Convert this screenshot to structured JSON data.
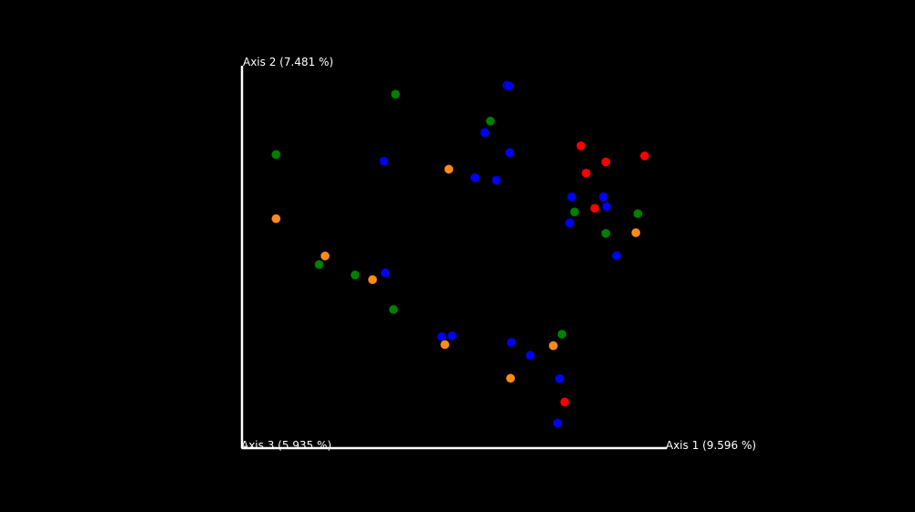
{
  "chart_data": {
    "type": "scatter",
    "axes": {
      "x": {
        "label": "Axis 1 (9.596 %)",
        "range": [
          0,
          100
        ]
      },
      "y": {
        "label": "Axis 2 (7.481 %)",
        "range": [
          0,
          100
        ]
      },
      "z": {
        "label": "Axis 3 (5.935 %)"
      }
    },
    "grid": false,
    "legend": "none",
    "colors": {
      "background": "#000000",
      "axis": "#ffffff",
      "red": "#ff0000",
      "blue": "#0000ff",
      "green": "#008000",
      "orange": "#ff8c1a"
    },
    "series": [
      {
        "color": "#ff0000",
        "x": [
          81.1,
          87.4,
          82.4,
          97.2,
          84.6,
          77.0
        ],
        "y": [
          80.7,
          76.2,
          73.1,
          77.9,
          63.3,
          9.3
        ]
      },
      {
        "color": "#0000ff",
        "x": [
          62.4,
          62.9,
          56.8,
          63.1,
          31.3,
          54.3,
          59.7,
          78.8,
          86.8,
          87.6,
          78.3,
          90.1,
          31.6,
          45.9,
          48.5,
          63.5,
          68.3,
          75.7,
          75.2
        ],
        "y": [
          97.6,
          97.4,
          84.4,
          78.8,
          76.4,
          71.8,
          71.1,
          66.5,
          66.5,
          63.8,
          59.2,
          50.1,
          45.3,
          27.5,
          27.7,
          25.9,
          22.3,
          15.8,
          3.4
        ]
      },
      {
        "color": "#008000",
        "x": [
          34.2,
          58.2,
          4.0,
          79.5,
          95.5,
          87.4,
          14.9,
          24.0,
          33.7,
          76.3
        ],
        "y": [
          95.1,
          87.6,
          78.3,
          62.3,
          61.8,
          56.3,
          47.6,
          44.7,
          35.1,
          28.2
        ]
      },
      {
        "color": "#ff8c1a",
        "x": [
          47.7,
          4.0,
          16.4,
          28.4,
          95.0,
          46.7,
          74.1,
          63.3
        ],
        "y": [
          74.2,
          60.4,
          50.0,
          43.4,
          56.5,
          25.3,
          25.0,
          15.9
        ]
      }
    ]
  }
}
